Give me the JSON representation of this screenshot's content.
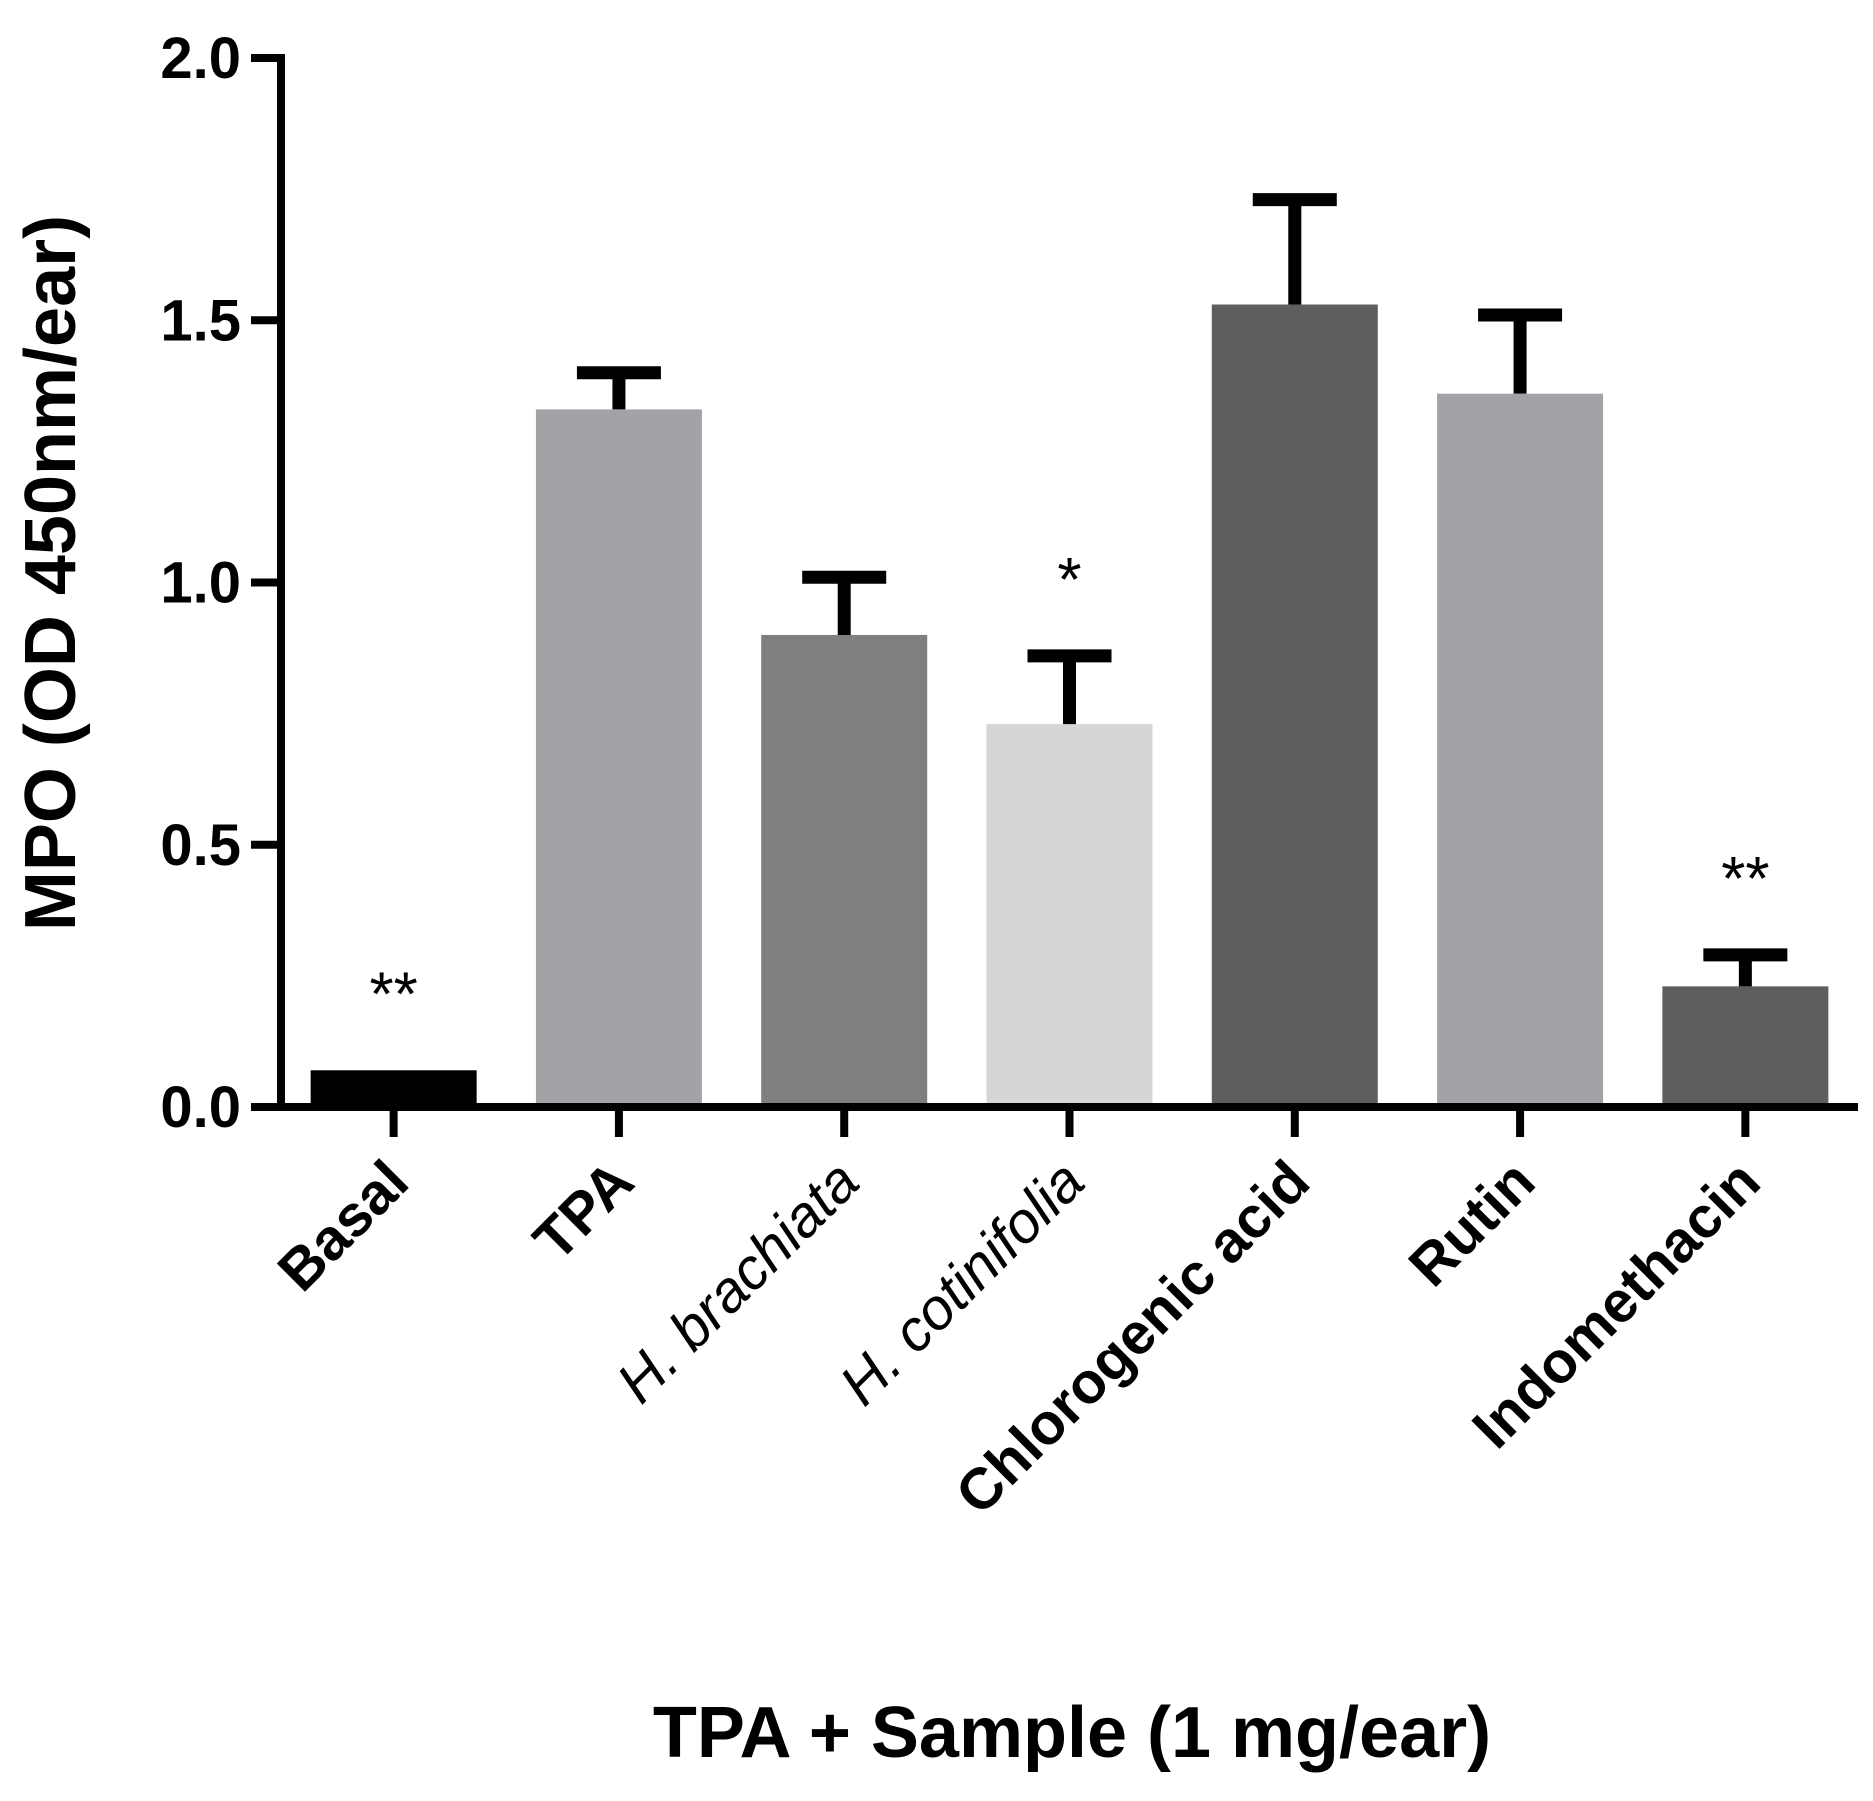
{
  "chart_data": {
    "type": "bar",
    "title": "",
    "xlabel": "TPA + Sample (1 mg/ear)",
    "ylabel": "MPO (OD 450nm/ear)",
    "ylim": [
      0,
      2.0
    ],
    "yticks": [
      0.0,
      0.5,
      1.0,
      1.5,
      2.0
    ],
    "ytick_labels": [
      "0.0",
      "0.5",
      "1.0",
      "1.5",
      "2.0"
    ],
    "categories": [
      "Basal",
      "TPA",
      "H. brachiata",
      "H. cotinifolia",
      "Chlorogenic acid",
      "Rutin",
      "Indomethacin"
    ],
    "italic_categories": [
      false,
      false,
      true,
      true,
      false,
      false,
      false
    ],
    "values": [
      0.07,
      1.33,
      0.9,
      0.73,
      1.53,
      1.36,
      0.23
    ],
    "errors": [
      0.0,
      0.07,
      0.11,
      0.13,
      0.2,
      0.15,
      0.06
    ],
    "significance": [
      "**",
      "",
      "",
      "*",
      "",
      "",
      "**"
    ],
    "colors": [
      "#000000",
      "#a2a3a7",
      "#7f7f7f",
      "#d6d6d6",
      "#5e5e5e",
      "#a2a3a7",
      "#5e5e5e"
    ]
  }
}
